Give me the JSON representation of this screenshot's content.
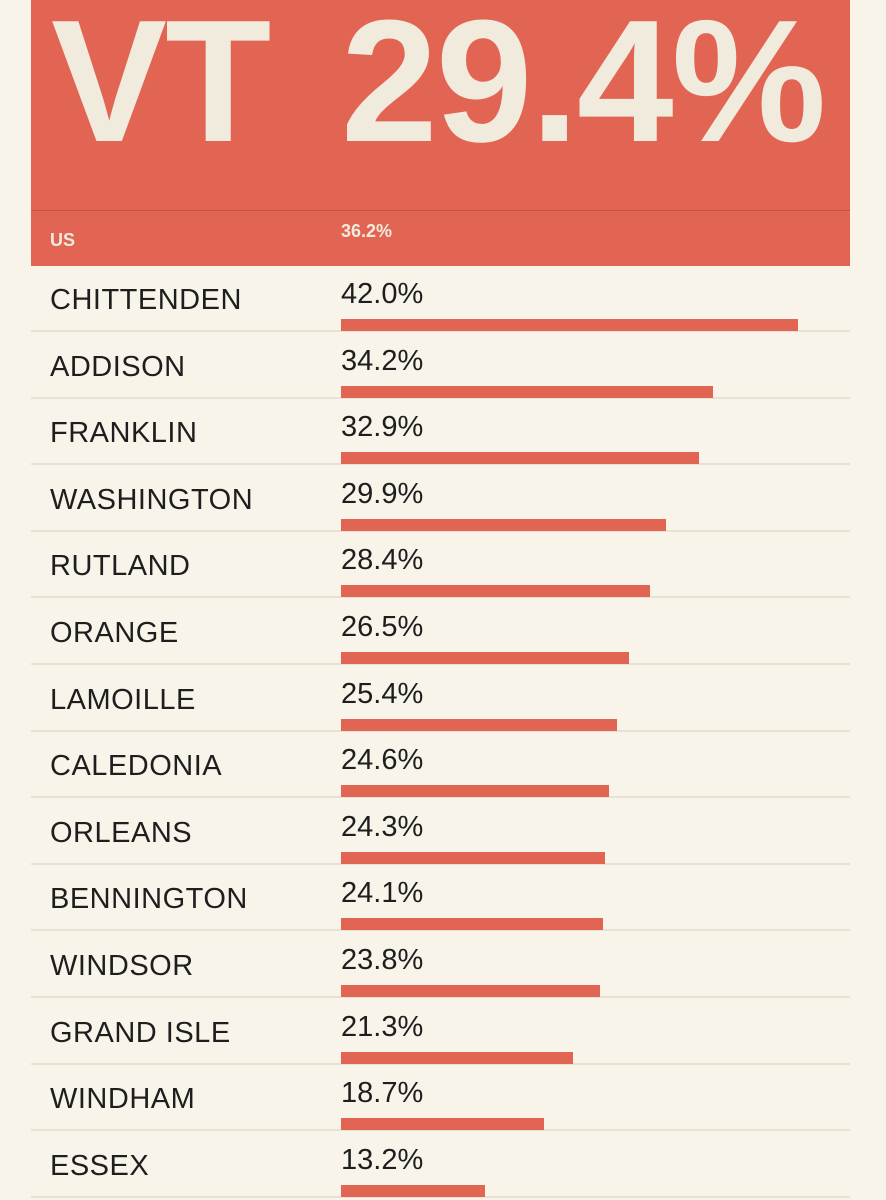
{
  "header": {
    "state_code": "VT",
    "state_value": "29.4%",
    "us_label": "US",
    "us_value": "36.2%"
  },
  "colors": {
    "accent": "#e26554",
    "header_text": "#f1ebdd",
    "background": "#f8f4ea"
  },
  "chart_data": {
    "type": "bar",
    "orientation": "horizontal",
    "categories": [
      "CHITTENDEN",
      "ADDISON",
      "FRANKLIN",
      "WASHINGTON",
      "RUTLAND",
      "ORANGE",
      "LAMOILLE",
      "CALEDONIA",
      "ORLEANS",
      "BENNINGTON",
      "WINDSOR",
      "GRAND ISLE",
      "WINDHAM",
      "ESSEX"
    ],
    "values": [
      42.0,
      34.2,
      32.9,
      29.9,
      28.4,
      26.5,
      25.4,
      24.6,
      24.3,
      24.1,
      23.8,
      21.3,
      18.7,
      13.2
    ],
    "labels": [
      "42.0%",
      "34.2%",
      "32.9%",
      "29.9%",
      "28.4%",
      "26.5%",
      "25.4%",
      "24.6%",
      "24.3%",
      "24.1%",
      "23.8%",
      "21.3%",
      "18.7%",
      "13.2%"
    ],
    "title": "",
    "xlabel": "",
    "ylabel": "",
    "xlim": [
      0,
      42.0
    ],
    "grid": false,
    "legend": "none"
  }
}
